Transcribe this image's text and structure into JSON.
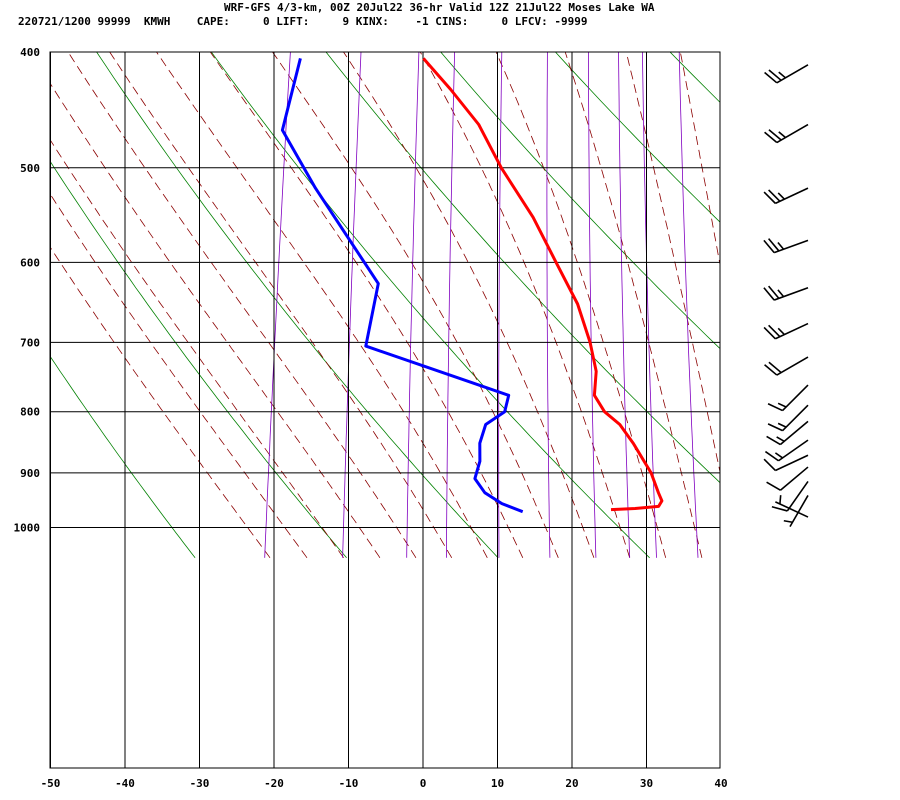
{
  "header": {
    "title": "WRF-GFS 4/3-km, 00Z 20Jul22 36-hr Valid 12Z 21Jul22 Moses Lake WA",
    "stats": "220721/1200 99999  KMWH    CAPE:     0 LIFT:     9 KINX:    -1 CINS:     0 LFCV: -9999"
  },
  "colors": {
    "temperature": "#ff0000",
    "dewpoint": "#0000ff",
    "isotherm_grid": "#000000",
    "dry_adiabat": "#008000",
    "moist_adiabat": "#8b0000",
    "mixing_ratio": "#8000c0",
    "wind_barb": "#000000"
  },
  "chart_data": {
    "type": "line",
    "chart_kind": "skew-T log-P sounding",
    "title": "WRF-GFS 4/3-km, 00Z 20Jul22 36-hr Valid 12Z 21Jul22 Moses Lake WA",
    "x_ticks": [
      -50,
      -40,
      -30,
      -20,
      -10,
      0,
      10,
      20,
      30,
      40
    ],
    "y_ticks": [
      400,
      500,
      600,
      700,
      800,
      900,
      1000
    ],
    "xlim": [
      -50,
      40
    ],
    "ylim": [
      1040,
      400
    ],
    "y_scale": "log",
    "grid": true,
    "series": [
      {
        "key": "temperature",
        "points": [
          [
            966,
            18.3
          ],
          [
            964,
            21.5
          ],
          [
            960,
            24.6
          ],
          [
            950,
            24.9
          ],
          [
            935,
            24.2
          ],
          [
            900,
            22.7
          ],
          [
            850,
            19.5
          ],
          [
            820,
            17.2
          ],
          [
            800,
            14.8
          ],
          [
            775,
            13.0
          ],
          [
            740,
            12.6
          ],
          [
            700,
            11.0
          ],
          [
            650,
            8.3
          ],
          [
            600,
            4.3
          ],
          [
            550,
            0.0
          ],
          [
            500,
            -5.6
          ],
          [
            460,
            -9.8
          ],
          [
            430,
            -14.5
          ],
          [
            405,
            -19.0
          ]
        ]
      },
      {
        "key": "dewpoint",
        "points": [
          [
            970,
            6.5
          ],
          [
            955,
            3.5
          ],
          [
            935,
            0.9
          ],
          [
            910,
            -0.8
          ],
          [
            880,
            -0.6
          ],
          [
            850,
            -1.1
          ],
          [
            820,
            -0.8
          ],
          [
            800,
            1.4
          ],
          [
            775,
            1.5
          ],
          [
            705,
            -19.0
          ],
          [
            625,
            -19.0
          ],
          [
            520,
            -30.0
          ],
          [
            465,
            -36.0
          ],
          [
            405,
            -35.5
          ]
        ]
      }
    ],
    "wind_barbs": [
      {
        "p": 410,
        "dir": 240,
        "spd": 25
      },
      {
        "p": 460,
        "dir": 240,
        "spd": 25
      },
      {
        "p": 520,
        "dir": 245,
        "spd": 25
      },
      {
        "p": 575,
        "dir": 250,
        "spd": 25
      },
      {
        "p": 630,
        "dir": 250,
        "spd": 25
      },
      {
        "p": 675,
        "dir": 245,
        "spd": 25
      },
      {
        "p": 720,
        "dir": 240,
        "spd": 20
      },
      {
        "p": 760,
        "dir": 225,
        "spd": 15
      },
      {
        "p": 790,
        "dir": 225,
        "spd": 15
      },
      {
        "p": 815,
        "dir": 230,
        "spd": 15
      },
      {
        "p": 845,
        "dir": 235,
        "spd": 15
      },
      {
        "p": 870,
        "dir": 245,
        "spd": 10
      },
      {
        "p": 890,
        "dir": 230,
        "spd": 10
      },
      {
        "p": 915,
        "dir": 215,
        "spd": 10
      },
      {
        "p": 940,
        "dir": 210,
        "spd": 5
      },
      {
        "p": 980,
        "dir": 295,
        "spd": 5
      }
    ]
  }
}
